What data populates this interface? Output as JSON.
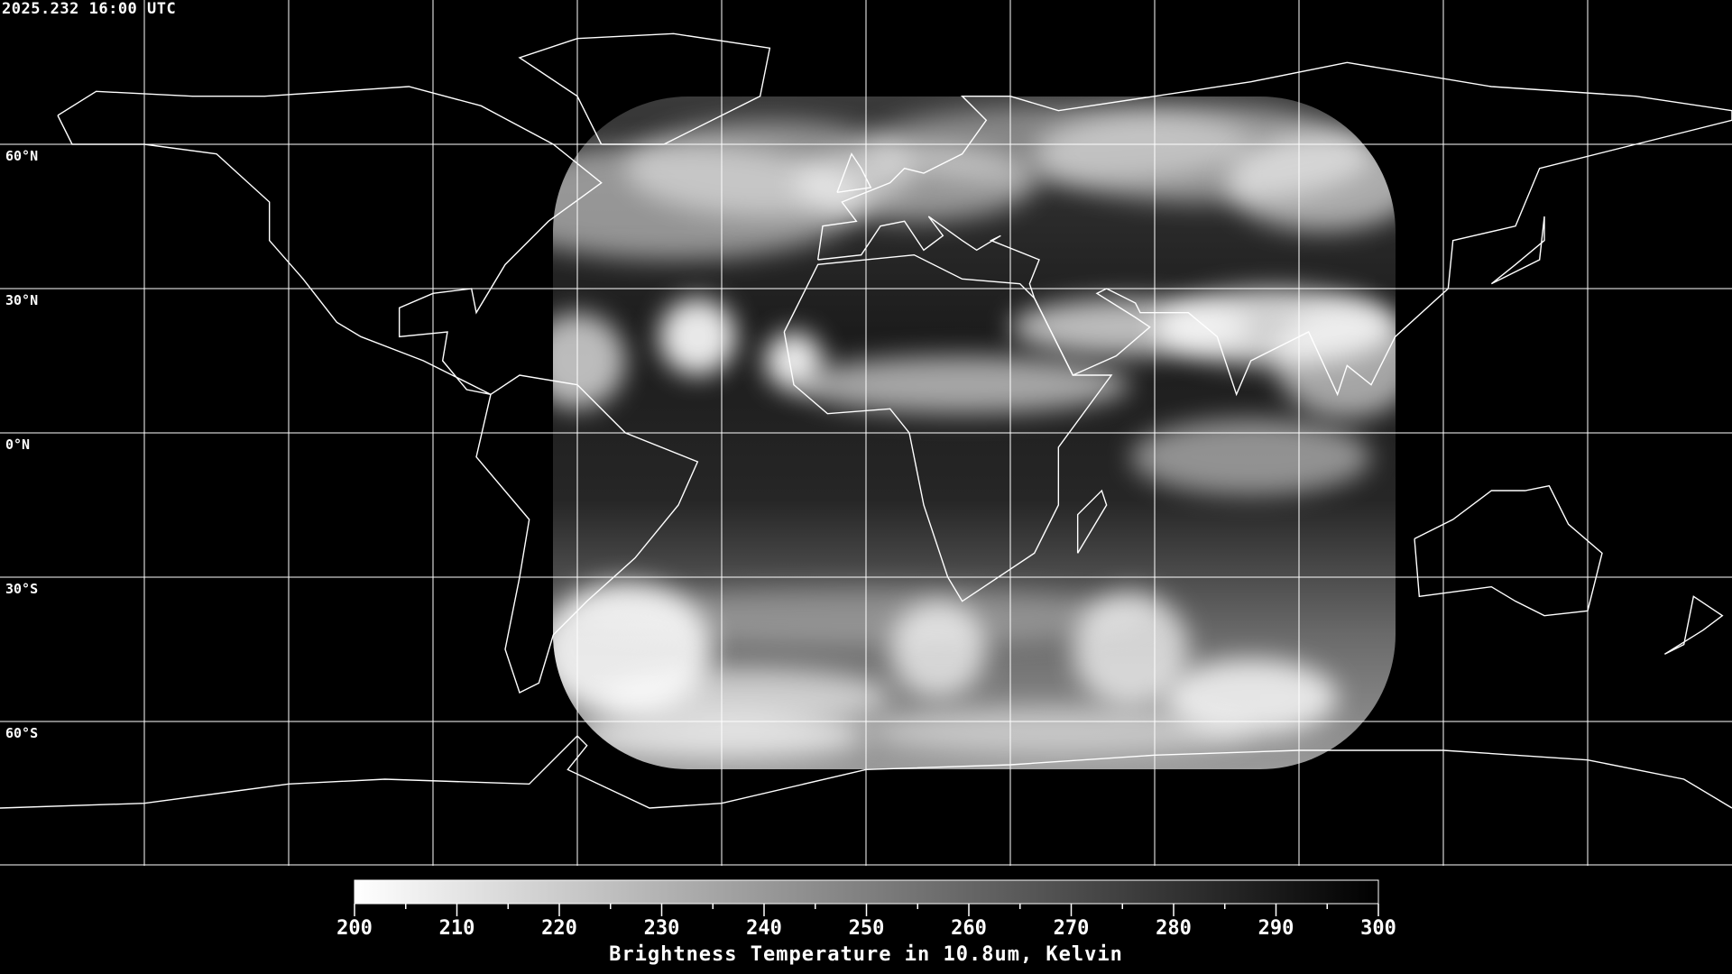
{
  "header": {
    "timestamp": "2025.232 16:00 UTC"
  },
  "map": {
    "projection": "equirectangular",
    "lon_range": [
      -180,
      180
    ],
    "lat_range": [
      -90,
      90
    ],
    "grid_spacing_deg": 30,
    "lat_labels": [
      {
        "lat": 60,
        "label": "60°N"
      },
      {
        "lat": 30,
        "label": "30°N"
      },
      {
        "lat": 0,
        "label": "0°N"
      },
      {
        "lat": -30,
        "label": "30°S"
      },
      {
        "lat": -60,
        "label": "60°S"
      }
    ],
    "coastline_color": "#ffffff",
    "grid_color": "#ffffff",
    "background_color": "#000000"
  },
  "colorbar": {
    "min": 200,
    "max": 300,
    "min_color": "#ffffff",
    "max_color": "#000000",
    "ticks": [
      "200",
      "210",
      "220",
      "230",
      "240",
      "250",
      "260",
      "270",
      "280",
      "290",
      "300"
    ],
    "label": "Brightness Temperature in 10.8um, Kelvin"
  }
}
